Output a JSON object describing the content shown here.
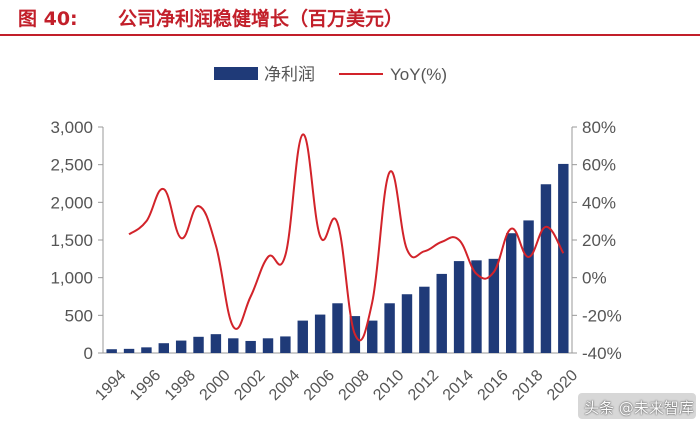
{
  "header": {
    "label": "图 40:",
    "title": "公司净利润稳健增长（百万美元）"
  },
  "colors": {
    "bar": "#1f3a78",
    "line": "#d2232a",
    "title": "#c21f2a",
    "axis": "#555555"
  },
  "chart_data": {
    "type": "bar",
    "title": "公司净利润稳健增长（百万美元）",
    "categories": [
      "1994",
      "1995",
      "1996",
      "1997",
      "1998",
      "1999",
      "2000",
      "2001",
      "2002",
      "2003",
      "2004",
      "2005",
      "2006",
      "2007",
      "2008",
      "2009",
      "2010",
      "2011",
      "2012",
      "2013",
      "2014",
      "2015",
      "2016",
      "2017",
      "2018",
      "2019",
      "2020"
    ],
    "x_tick_labels": [
      "1994",
      "1996",
      "1998",
      "2000",
      "2002",
      "2004",
      "2006",
      "2008",
      "2010",
      "2012",
      "2014",
      "2016",
      "2018",
      "2020"
    ],
    "series": [
      {
        "name": "净利润",
        "type": "bar",
        "axis": "left",
        "values": [
          50,
          55,
          75,
          130,
          165,
          215,
          250,
          195,
          160,
          195,
          220,
          430,
          510,
          660,
          490,
          430,
          660,
          780,
          880,
          1050,
          1220,
          1230,
          1250,
          1590,
          1760,
          2240,
          2510
        ]
      },
      {
        "name": "YoY(%)",
        "type": "line",
        "axis": "right",
        "values": [
          null,
          23,
          30,
          47,
          21,
          38,
          17,
          -26,
          -10,
          11,
          12,
          76,
          22,
          29,
          -30,
          -13,
          56,
          15,
          14,
          19,
          20,
          2,
          3,
          26,
          11,
          27,
          13
        ]
      }
    ],
    "y_left": {
      "min": 0,
      "max": 3000,
      "ticks": [
        0,
        500,
        1000,
        1500,
        2000,
        2500,
        3000
      ],
      "tick_labels": [
        "0",
        "500",
        "1,000",
        "1,500",
        "2,000",
        "2,500",
        "3,000"
      ]
    },
    "y_right": {
      "min": -40,
      "max": 80,
      "ticks": [
        -40,
        -20,
        0,
        20,
        40,
        60,
        80
      ],
      "tick_labels": [
        "-40%",
        "-20%",
        "0%",
        "20%",
        "40%",
        "60%",
        "80%"
      ]
    },
    "legend": [
      "净利润",
      "YoY(%)"
    ],
    "legend_position": "top",
    "grid": false
  },
  "watermark": "头条 @未来智库"
}
